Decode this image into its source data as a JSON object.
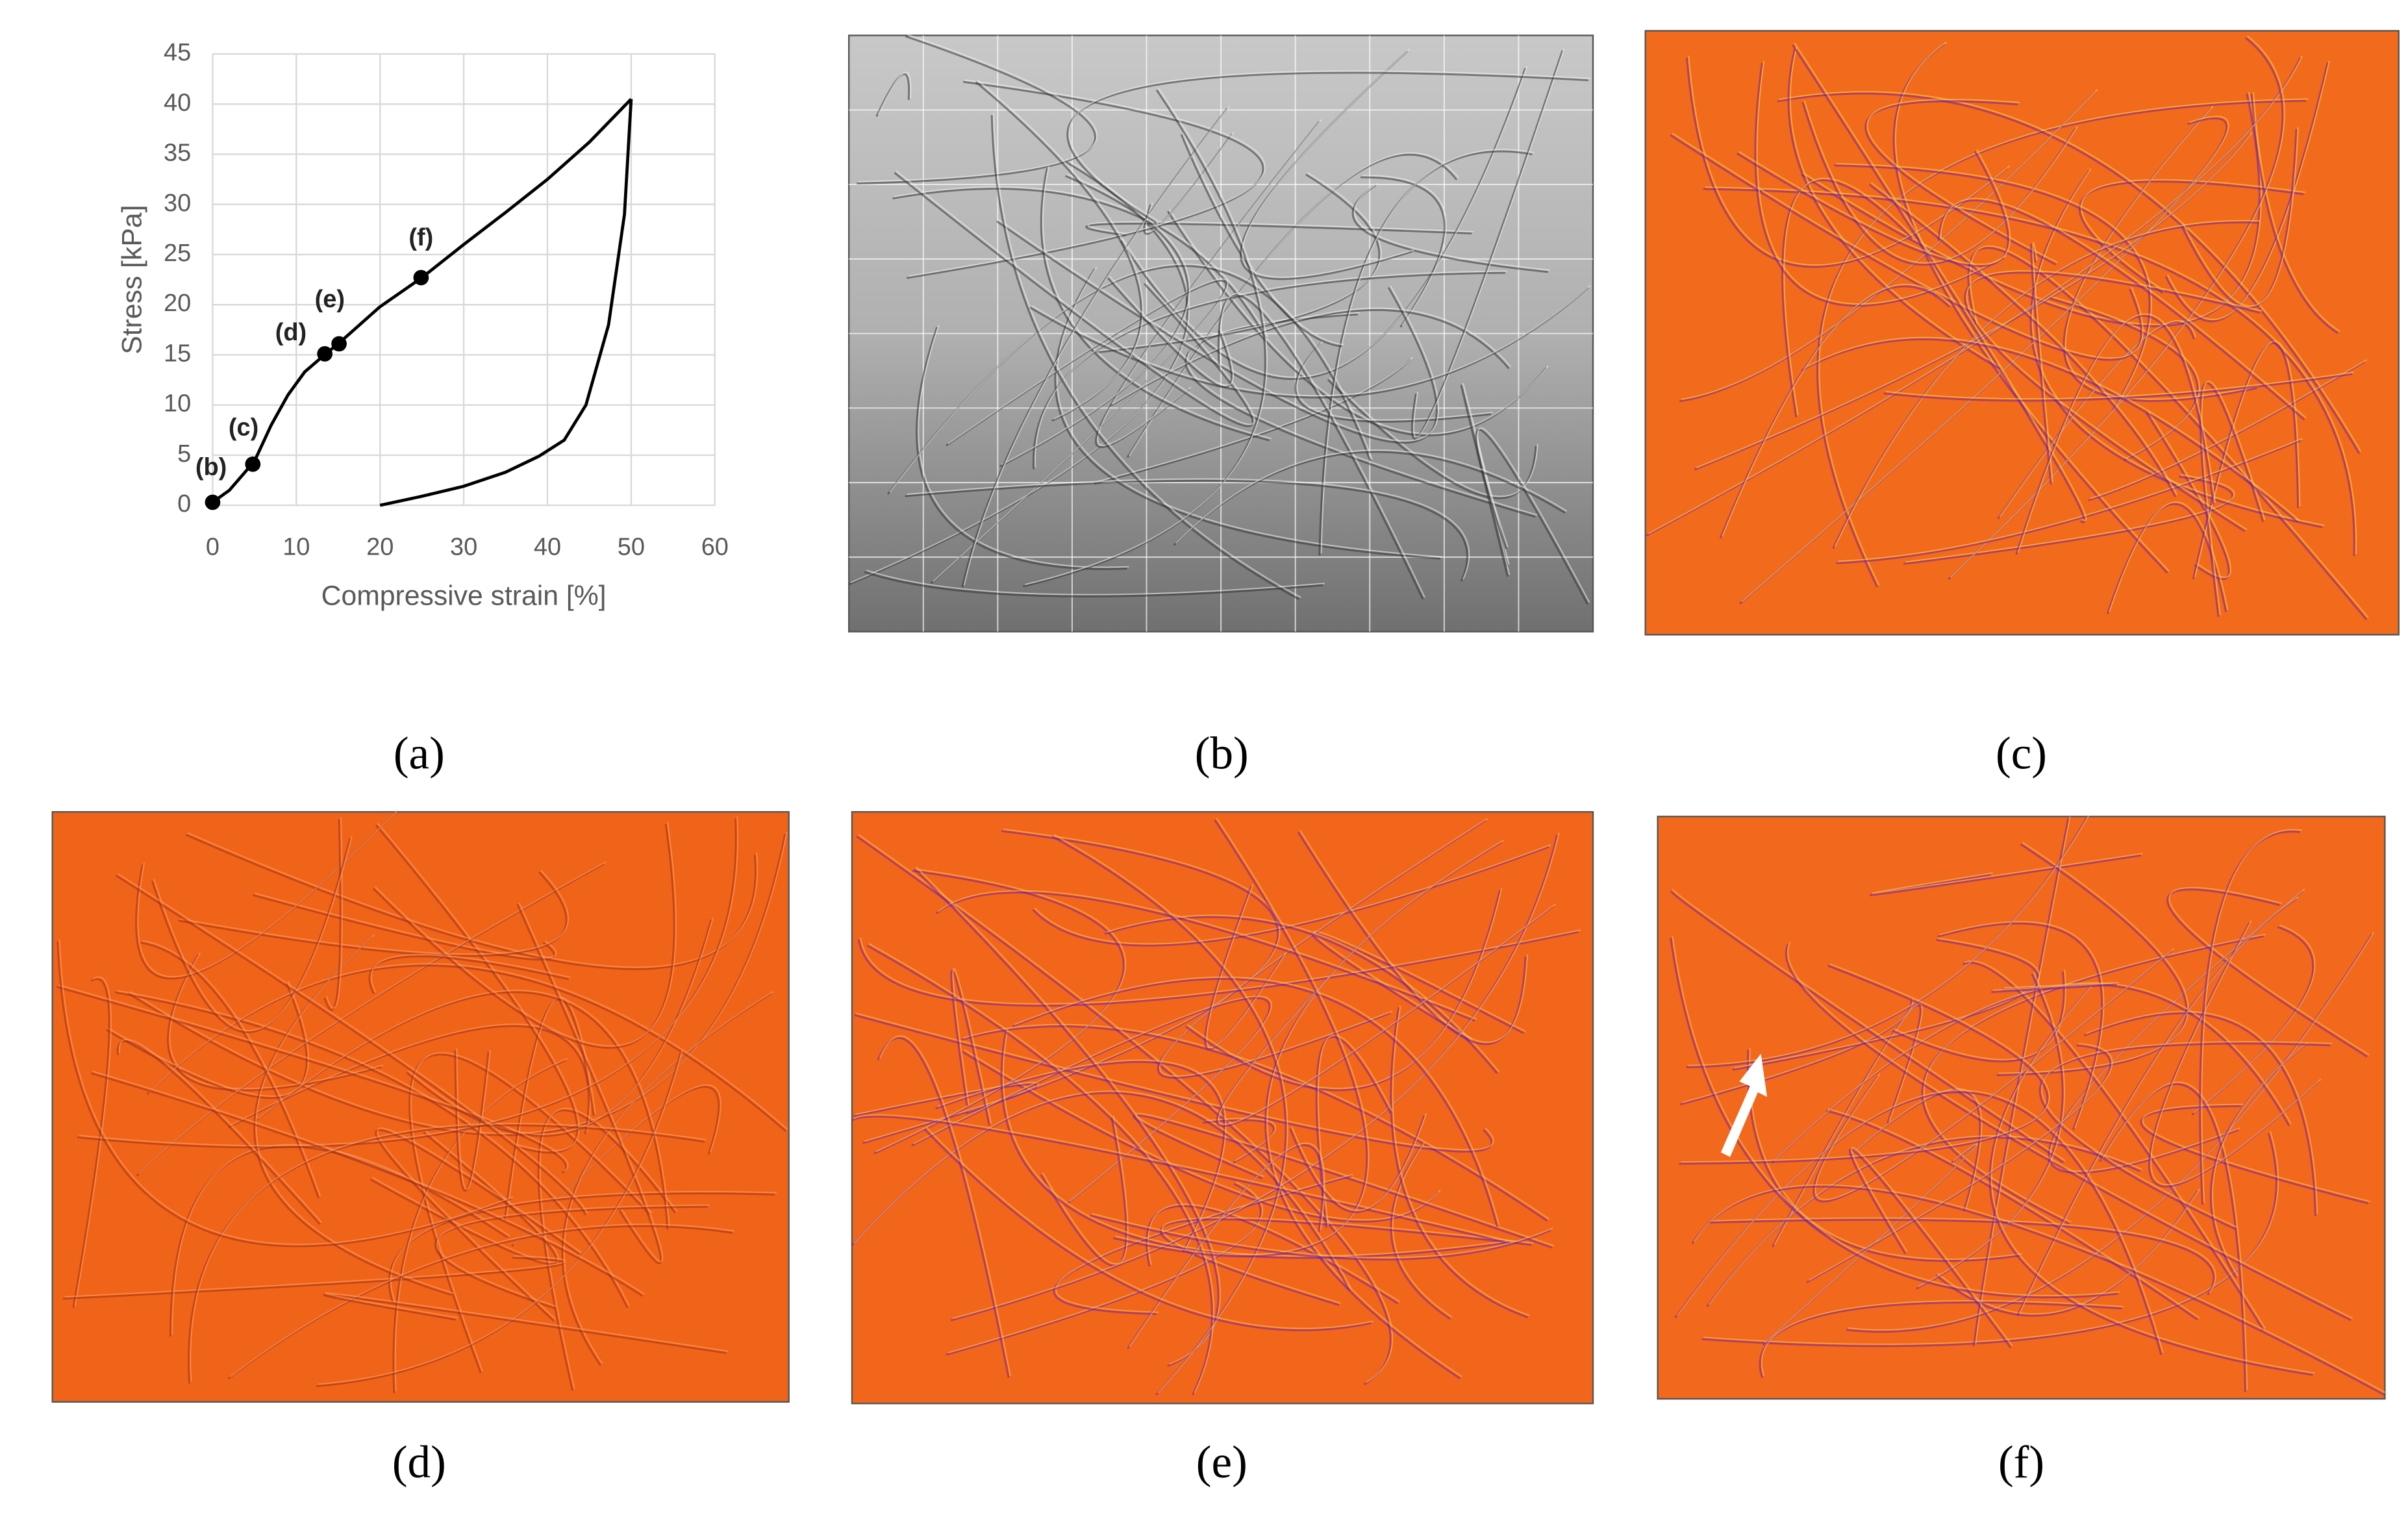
{
  "chart_data": {
    "type": "line",
    "xlabel": "Compressive strain [%]",
    "ylabel": "Stress [kPa]",
    "xlim": [
      0,
      60
    ],
    "ylim": [
      0,
      45
    ],
    "xticks": [
      0,
      10,
      20,
      30,
      40,
      50,
      60
    ],
    "yticks": [
      0,
      5,
      10,
      15,
      20,
      25,
      30,
      35,
      40,
      45
    ],
    "grid": true,
    "series": [
      {
        "color": "#000000",
        "x": [
          0,
          2,
          5,
          7,
          9,
          11,
          13.5,
          15,
          20,
          25,
          30,
          35,
          40,
          45,
          50
        ],
        "values": [
          0.3,
          1.5,
          4.4,
          8,
          11,
          13.3,
          15.1,
          16.1,
          19.8,
          22.7,
          26,
          29.2,
          32.5,
          36.2,
          40.5
        ]
      },
      {
        "color": "#000000",
        "x": [
          50,
          49.2,
          47.3,
          44.6,
          42,
          39,
          35,
          30,
          25,
          20
        ],
        "values": [
          40.5,
          29,
          18,
          10,
          6.5,
          4.9,
          3.3,
          1.9,
          0.9,
          0
        ]
      }
    ],
    "markers": {
      "color": "#000000",
      "x": [
        0,
        4.8,
        13.4,
        15.1,
        24.9
      ],
      "values": [
        0.3,
        4.1,
        15.1,
        16.1,
        22.7
      ],
      "labels": [
        "(b)",
        "(c)",
        "(d)",
        "(e)",
        "(f)"
      ]
    }
  },
  "panels": {
    "labels": [
      "(a)",
      "(b)",
      "(c)",
      "(d)",
      "(e)",
      "(f)"
    ]
  }
}
